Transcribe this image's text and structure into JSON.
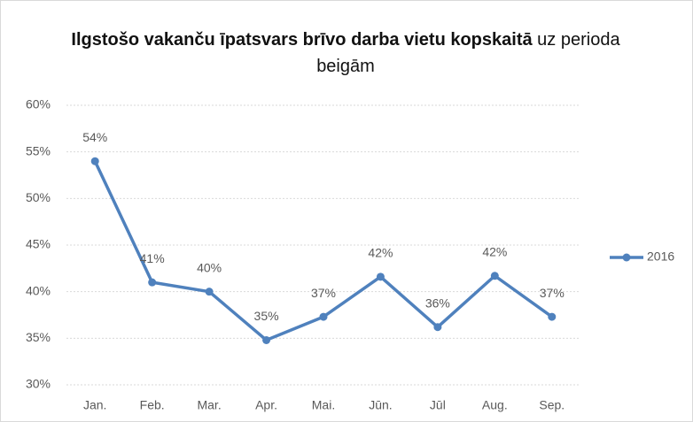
{
  "chart_data": {
    "type": "line",
    "title": "Ilgstošo vakanču īpatsvars brīvo darba vietu kopskaitā",
    "subtitle": "uz perioda beigām",
    "categories": [
      "Jan.",
      "Feb.",
      "Mar.",
      "Apr.",
      "Mai.",
      "Jūn.",
      "Jūl",
      "Aug.",
      "Sep."
    ],
    "series": [
      {
        "name": "2016",
        "color": "#4f81bd",
        "values": [
          54.0,
          41.0,
          40.0,
          34.8,
          37.3,
          41.6,
          36.2,
          41.7,
          37.3
        ],
        "value_labels": [
          "54%",
          "41%",
          "40%",
          "35%",
          "37%",
          "42%",
          "36%",
          "42%",
          "37%"
        ]
      }
    ],
    "ylim": [
      30,
      60
    ],
    "yticks": [
      {
        "value": 30,
        "label": "30%"
      },
      {
        "value": 35,
        "label": "35%"
      },
      {
        "value": 40,
        "label": "40%"
      },
      {
        "value": 45,
        "label": "45%"
      },
      {
        "value": 50,
        "label": "50%"
      },
      {
        "value": 55,
        "label": "55%"
      },
      {
        "value": 60,
        "label": "60%"
      }
    ],
    "grid": true,
    "legend": "right"
  }
}
